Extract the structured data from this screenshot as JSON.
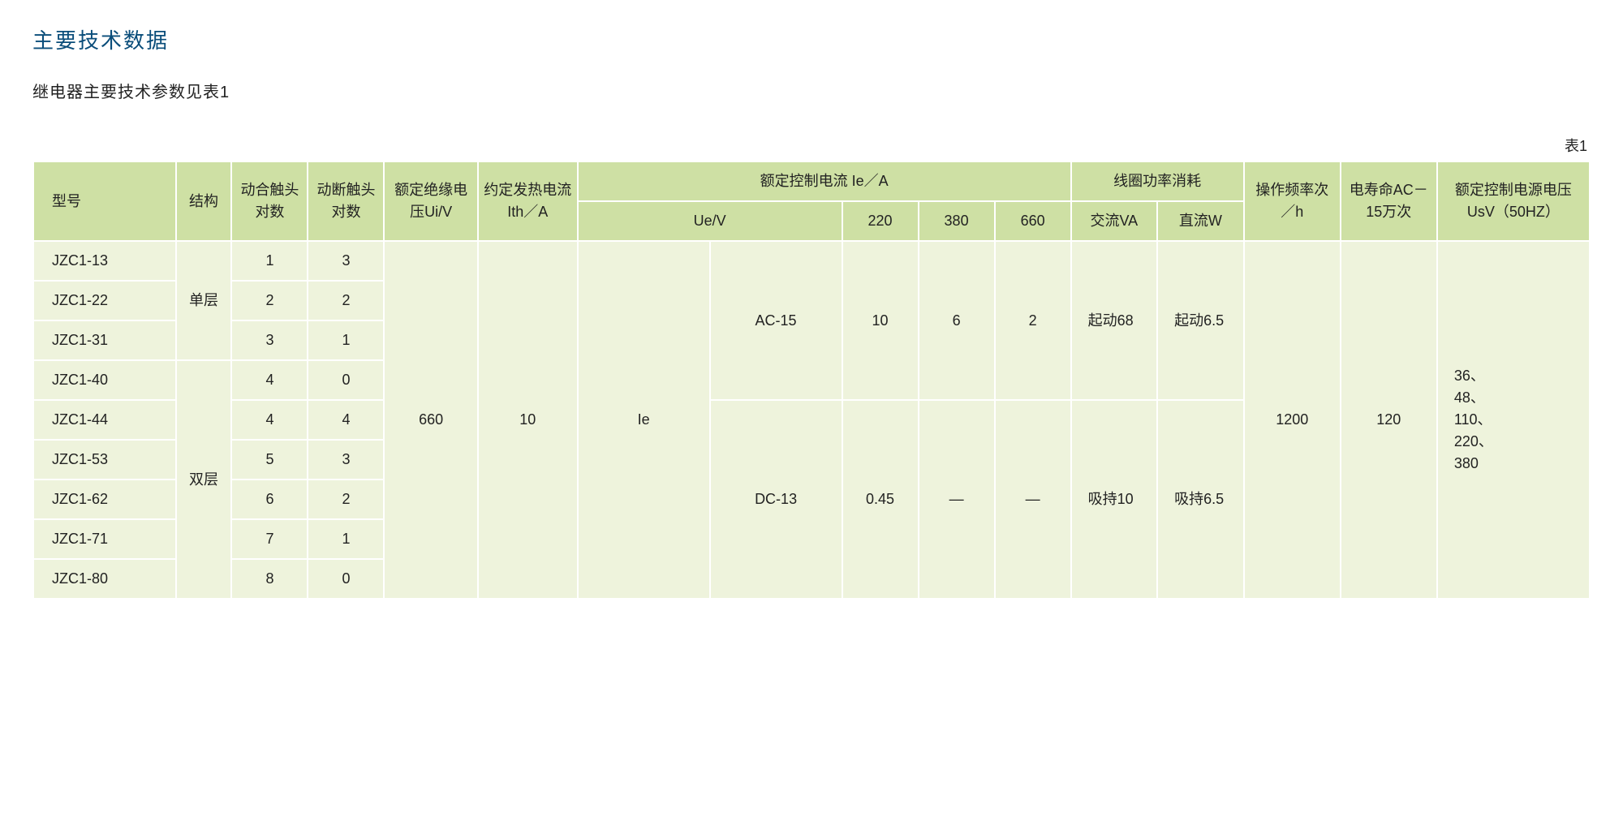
{
  "page": {
    "title": "主要技术数据",
    "subtitle": "继电器主要技术参数见表1",
    "table_label": "表1"
  },
  "colors": {
    "title": "#0a4d7a",
    "header_bg": "#cee0a4",
    "body_bg": "#eef3dc",
    "border": "#ffffff",
    "text": "#222222"
  },
  "typography": {
    "title_fontsize": 26,
    "subtitle_fontsize": 20,
    "cell_fontsize": 18,
    "font_family": "Microsoft YaHei"
  },
  "headers": {
    "model": "型号",
    "structure": "结构",
    "no_contacts": "动合触头对数",
    "nc_contacts": "动断触头对数",
    "ui": "额定绝缘电压Ui/V",
    "ith": "约定发热电流Ith／A",
    "ie_group": "额定控制电流 Ie／A",
    "coil_group": "线圈功率消耗",
    "ue": "Ue/V",
    "v220": "220",
    "v380": "380",
    "v660": "660",
    "ac": "交流VA",
    "dc": "直流W",
    "op_freq": "操作频率次／h",
    "life": "电寿命AC－15万次",
    "usv": "额定控制电源电压UsV（50HZ）"
  },
  "rows": [
    {
      "model": "JZC1-13",
      "no": "1",
      "nc": "3"
    },
    {
      "model": "JZC1-22",
      "no": "2",
      "nc": "2"
    },
    {
      "model": "JZC1-31",
      "no": "3",
      "nc": "1"
    },
    {
      "model": "JZC1-40",
      "no": "4",
      "nc": "0"
    },
    {
      "model": "JZC1-44",
      "no": "4",
      "nc": "4"
    },
    {
      "model": "JZC1-53",
      "no": "5",
      "nc": "3"
    },
    {
      "model": "JZC1-62",
      "no": "6",
      "nc": "2"
    },
    {
      "model": "JZC1-71",
      "no": "7",
      "nc": "1"
    },
    {
      "model": "JZC1-80",
      "no": "8",
      "nc": "0"
    }
  ],
  "merged": {
    "struct_single": "单层",
    "struct_double": "双层",
    "ui": "660",
    "ith": "10",
    "ie_label": "Ie",
    "ac15": "AC-15",
    "dc13": "DC-13",
    "ac15_220": "10",
    "ac15_380": "6",
    "ac15_660": "2",
    "dc13_220": "0.45",
    "dc13_380": "—",
    "dc13_660": "—",
    "coil_ac_start": "起动68",
    "coil_dc_start": "起动6.5",
    "coil_ac_hold": "吸持10",
    "coil_dc_hold": "吸持6.5",
    "op_freq": "1200",
    "life": "120",
    "usv": "36、\n48、\n110、\n220、\n380"
  }
}
